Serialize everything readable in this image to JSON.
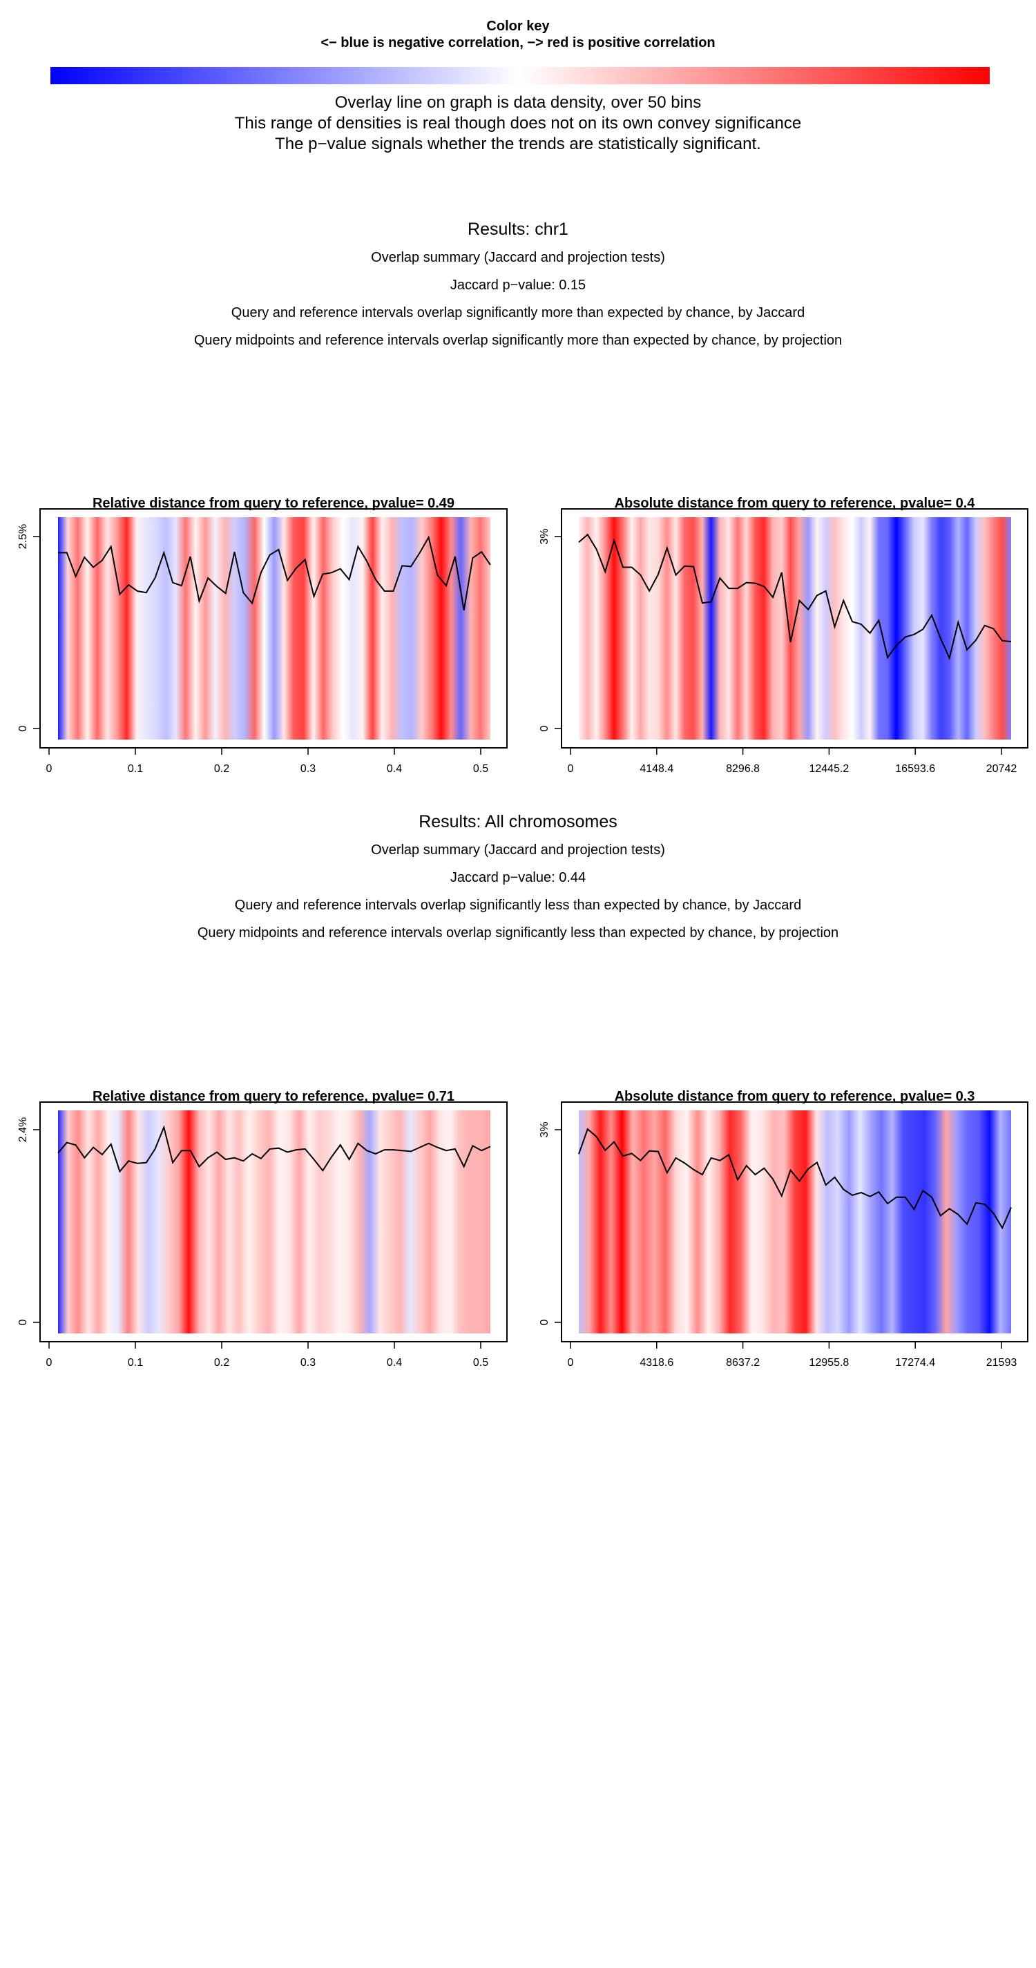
{
  "color_key": {
    "title": "Color key",
    "subtitle": "<− blue is negative correlation, −> red is positive correlation",
    "low_color": "#0000ff",
    "mid_color": "#ffffff",
    "high_color": "#ff0000"
  },
  "overlay_notes": [
    "Overlay line on graph is data density, over 50  bins",
    "This range of densities is real though does not on its own convey significance",
    "The p−value signals whether the trends are statistically significant."
  ],
  "results": [
    {
      "title": "Results: chr1",
      "summary": "Overlap summary (Jaccard and projection tests)",
      "jaccard": "Jaccard p−value: 0.15",
      "jaccard_text": "Query and reference intervals overlap significantly more than expected by chance, by Jaccard",
      "projection_text": "Query midpoints and reference intervals overlap significantly more than expected by chance, by projection"
    },
    {
      "title": "Results: All chromosomes",
      "summary": "Overlap summary (Jaccard and projection tests)",
      "jaccard": "Jaccard p−value: 0.44",
      "jaccard_text": "Query and reference intervals overlap significantly less than expected by chance, by Jaccard",
      "projection_text": "Query midpoints and reference intervals overlap significantly less than expected by chance, by projection"
    }
  ],
  "chart_data": [
    {
      "type": "line",
      "title": "Relative distance from query to reference, pvalue= 0.49",
      "x_ticks": [
        "0",
        "0.1",
        "0.2",
        "0.3",
        "0.4",
        "0.5"
      ],
      "y_ticks": [
        "0",
        "2.5%"
      ],
      "xlim": [
        0,
        0.5
      ],
      "ylim": [
        0,
        2.5
      ],
      "heat": [
        -0.9,
        0.15,
        0.55,
        0.05,
        0.6,
        0.1,
        0.4,
        0.85,
        0.05,
        -0.1,
        -0.15,
        -0.25,
        -0.1,
        0.55,
        0.05,
        0.4,
        -0.05,
        0.3,
        -0.2,
        -0.3,
        0.6,
        0.0,
        -0.4,
        0.1,
        0.65,
        0.75,
        0.05,
        0.6,
        0.2,
        0.0,
        -0.1,
        0.05,
        0.75,
        0.05,
        0.3,
        -0.25,
        -0.3,
        0.2,
        0.5,
        0.95,
        0.45,
        -0.6,
        0.3,
        0.55,
        0.2
      ],
      "series": [
        {
          "values": [
            2.29,
            2.29,
            1.98,
            2.23,
            2.1,
            2.19,
            2.37,
            1.75,
            1.87,
            1.79,
            1.77,
            1.96,
            2.29,
            1.9,
            1.86,
            2.24,
            1.66,
            1.96,
            1.85,
            1.76,
            2.3,
            1.77,
            1.63,
            2.03,
            2.26,
            2.33,
            1.93,
            2.09,
            2.2,
            1.72,
            2.01,
            2.03,
            2.08,
            1.94,
            2.37,
            2.18,
            1.94,
            1.79,
            1.79,
            2.12,
            2.11,
            2.29,
            2.49,
            2.0,
            1.86,
            2.24,
            1.54,
            2.22,
            2.3,
            2.13
          ]
        }
      ]
    },
    {
      "type": "line",
      "title": "Absolute distance from query to reference, pvalue= 0.4",
      "x_ticks": [
        "0",
        "4148.4",
        "8296.8",
        "12445.2",
        "16593.6",
        "20742"
      ],
      "y_ticks": [
        "0",
        "3%"
      ],
      "xlim": [
        0,
        20742
      ],
      "ylim": [
        0,
        3
      ],
      "heat": [
        0.05,
        0.3,
        0.05,
        0.45,
        0.95,
        0.55,
        0.05,
        0.35,
        0.1,
        0.15,
        0.45,
        0.1,
        0.6,
        0.7,
        0.3,
        -0.9,
        0.3,
        0.1,
        0.55,
        0.15,
        0.65,
        0.85,
        0.3,
        0.2,
        0.7,
        0.35,
        -0.4,
        0.05,
        -0.2,
        0.25,
        0.1,
        0.0,
        -0.2,
        0.05,
        -0.55,
        -0.6,
        -1.0,
        -0.6,
        -0.2,
        -0.1,
        -0.5,
        -0.75,
        -0.65,
        -0.3,
        -0.6,
        -0.2,
        0.25,
        0.5,
        0.7,
        -0.5
      ],
      "series": [
        {
          "values": [
            2.91,
            3.03,
            2.8,
            2.45,
            2.94,
            2.52,
            2.52,
            2.4,
            2.15,
            2.41,
            2.82,
            2.4,
            2.54,
            2.53,
            1.96,
            1.98,
            2.35,
            2.19,
            2.19,
            2.28,
            2.27,
            2.22,
            2.05,
            2.44,
            1.35,
            2.0,
            1.86,
            2.08,
            2.15,
            1.59,
            2.0,
            1.67,
            1.63,
            1.49,
            1.69,
            1.11,
            1.3,
            1.43,
            1.47,
            1.55,
            1.77,
            1.41,
            1.1,
            1.66,
            1.23,
            1.38,
            1.61,
            1.56,
            1.37,
            1.36
          ]
        }
      ]
    },
    {
      "type": "line",
      "title": "Relative distance from query to reference, pvalue= 0.71",
      "x_ticks": [
        "0",
        "0.1",
        "0.2",
        "0.3",
        "0.4",
        "0.5"
      ],
      "y_ticks": [
        "0",
        "2.4%"
      ],
      "xlim": [
        0,
        0.5
      ],
      "ylim": [
        0,
        2.4
      ],
      "heat": [
        -0.85,
        0.2,
        0.45,
        0.1,
        0.35,
        0.05,
        -0.1,
        0.5,
        0.1,
        -0.2,
        -0.1,
        0.2,
        0.35,
        0.95,
        0.3,
        0.1,
        0.35,
        0.1,
        0.25,
        0.05,
        0.2,
        0.3,
        0.05,
        0.1,
        0.35,
        0.05,
        0.2,
        0.15,
        0.05,
        0.1,
        0.3,
        -0.35,
        0.1,
        0.2,
        0.3,
        -0.1,
        0.2,
        0.35,
        0.1,
        0.05,
        0.25,
        0.3,
        0.3,
        0.35
      ],
      "series": [
        {
          "values": [
            2.11,
            2.24,
            2.21,
            2.05,
            2.18,
            2.09,
            2.22,
            1.88,
            2.01,
            1.98,
            1.99,
            2.16,
            2.43,
            1.99,
            2.14,
            2.14,
            1.94,
            2.05,
            2.12,
            2.03,
            2.05,
            2.01,
            2.1,
            2.04,
            2.16,
            2.17,
            2.12,
            2.15,
            2.16,
            2.03,
            1.89,
            2.06,
            2.21,
            2.03,
            2.23,
            2.14,
            2.1,
            2.15,
            2.15,
            2.14,
            2.13,
            2.18,
            2.23,
            2.18,
            2.14,
            2.16,
            1.94,
            2.2,
            2.14,
            2.19
          ]
        }
      ]
    },
    {
      "type": "line",
      "title": "Absolute distance from query to reference, pvalue= 0.3",
      "x_ticks": [
        "0",
        "4318.6",
        "8637.2",
        "12955.8",
        "17274.4",
        "21593"
      ],
      "y_ticks": [
        "0",
        "3%"
      ],
      "xlim": [
        0,
        21593
      ],
      "ylim": [
        0,
        3
      ],
      "heat": [
        -0.25,
        0.35,
        0.9,
        0.45,
        1.0,
        0.3,
        0.55,
        0.35,
        0.6,
        0.15,
        0.05,
        0.45,
        0.05,
        0.3,
        0.85,
        0.6,
        0.05,
        0.1,
        0.3,
        0.25,
        0.75,
        0.9,
        0.1,
        -0.25,
        -0.15,
        -0.4,
        -0.1,
        -0.35,
        -0.55,
        -0.3,
        -0.7,
        -0.75,
        -0.8,
        -0.6,
        0.35,
        -0.4,
        -0.6,
        -0.65,
        -0.95,
        -0.3,
        -0.55
      ],
      "series": [
        {
          "values": [
            2.62,
            3.01,
            2.89,
            2.68,
            2.81,
            2.59,
            2.63,
            2.52,
            2.67,
            2.66,
            2.33,
            2.56,
            2.48,
            2.38,
            2.3,
            2.56,
            2.52,
            2.61,
            2.22,
            2.44,
            2.3,
            2.4,
            2.23,
            1.97,
            2.37,
            2.2,
            2.39,
            2.49,
            2.14,
            2.26,
            2.07,
            1.98,
            2.02,
            1.96,
            2.03,
            1.85,
            1.95,
            1.95,
            1.76,
            2.05,
            1.95,
            1.66,
            1.77,
            1.68,
            1.53,
            1.86,
            1.84,
            1.7,
            1.47,
            1.79
          ]
        }
      ]
    }
  ]
}
